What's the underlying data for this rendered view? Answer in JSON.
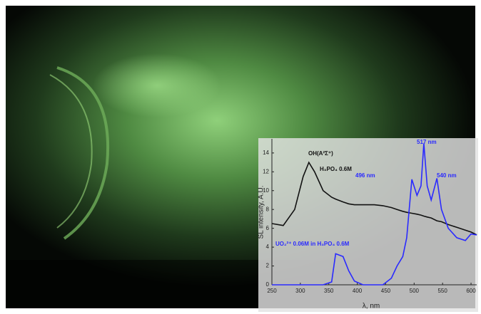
{
  "chart_data": {
    "type": "line",
    "y_label": "SL intensity, A.U.",
    "x_label": "λ, nm",
    "annotations": [
      "OH(A²Σ⁺)",
      "H₃PO₄ 0.6M",
      "UO₂²⁺ 0.06M in H₃PO₄ 0.6M",
      "496 nm",
      "517 nm",
      "540 nm"
    ],
    "x": [
      250,
      270,
      290,
      305,
      315,
      325,
      340,
      355,
      362,
      375,
      385,
      395,
      410,
      430,
      445,
      460,
      470,
      480,
      487,
      496,
      505,
      512,
      517,
      523,
      530,
      540,
      548,
      560,
      575,
      590,
      600,
      610
    ],
    "series": [
      {
        "color": "#111111",
        "values": [
          6.5,
          6.3,
          8,
          11.5,
          13,
          12,
          10,
          9.3,
          9.1,
          8.8,
          8.6,
          8.5,
          8.5,
          8.5,
          8.4,
          8.2,
          8,
          7.8,
          7.7,
          7.6,
          7.5,
          7.4,
          7.3,
          7.2,
          7.1,
          6.8,
          6.7,
          6.4,
          6.1,
          5.8,
          5.6,
          5.3
        ]
      },
      {
        "color": "#2a2aff",
        "values": [
          0,
          0,
          0,
          0,
          0,
          0,
          0,
          0.3,
          3.3,
          3,
          1.5,
          0.4,
          0,
          0,
          0,
          0.7,
          2,
          3,
          5,
          11.2,
          9.5,
          10.5,
          15,
          10.5,
          9,
          11.3,
          8,
          6,
          5,
          4.7,
          5.4,
          5.3
        ]
      }
    ],
    "xlim": [
      250,
      610
    ],
    "ylim": [
      0,
      15.5
    ],
    "xticks": [
      250,
      300,
      350,
      400,
      450,
      500,
      550,
      600
    ],
    "yticks": [
      0,
      2,
      4,
      6,
      8,
      10,
      12,
      14
    ]
  }
}
